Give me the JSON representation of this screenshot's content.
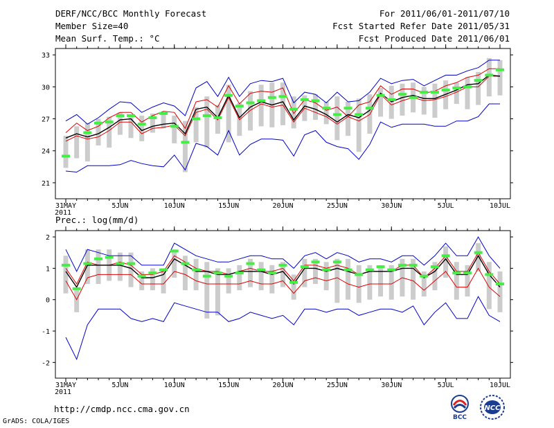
{
  "header": {
    "title": "DERF/NCC/BCC Monthly Forecast",
    "member": "Member Size=40",
    "variable": "Mean Surf. Temp.: °C",
    "period": "For 2011/06/01-2011/07/10",
    "refer": "Fcst Started Refer Date 2011/05/31",
    "produced": "Fcst Produced Date 2011/06/01"
  },
  "footer": {
    "url": "http://cmdp.ncc.cma.gov.cn",
    "credit": "GrADS: COLA/IGES",
    "logo_left": "BCC",
    "logo_right": "NCC"
  },
  "colors": {
    "max": "#0000cc",
    "min": "#0000cc",
    "upper": "#dd0000",
    "lower": "#dd0000",
    "mean": "#000000",
    "box": "#cccccc",
    "obs": "#44ee44"
  },
  "chart_data": [
    {
      "type": "line",
      "title": "Mean Surf. Temp.: °C",
      "xlabel": "",
      "ylabel": "",
      "x": [
        0,
        1,
        2,
        3,
        4,
        5,
        6,
        7,
        8,
        9,
        10,
        11,
        12,
        13,
        14,
        15,
        16,
        17,
        18,
        19,
        20,
        21,
        22,
        23,
        24,
        25,
        26,
        27,
        28,
        29,
        30,
        31,
        32,
        33,
        34,
        35,
        36,
        37,
        38,
        39,
        40
      ],
      "xlim": [
        0,
        40
      ],
      "ylim": [
        19.5,
        33.6
      ],
      "yticks": [
        21,
        24,
        27,
        30,
        33
      ],
      "xtick_pos": [
        0,
        5,
        10,
        15,
        20,
        25,
        30,
        35,
        40
      ],
      "xtick_labels": [
        "31MAY",
        "5JUN",
        "10JUN",
        "15JUN",
        "20JUN",
        "25JUN",
        "30JUN",
        "5JUL",
        "10JUL"
      ],
      "xsub": "2011",
      "series": [
        {
          "name": "max",
          "values": [
            26.8,
            27.4,
            26.5,
            27.1,
            27.9,
            28.6,
            28.5,
            27.6,
            28.1,
            28.5,
            28.2,
            27.3,
            29.9,
            30.5,
            29.1,
            30.9,
            29.1,
            30.3,
            30.6,
            30.5,
            30.8,
            28.5,
            29.5,
            29.3,
            28.5,
            29.5,
            28.6,
            28.7,
            29.5,
            30.8,
            30.3,
            30.6,
            30.7,
            30.1,
            30.6,
            31.1,
            31.1,
            31.5,
            31.8,
            32.5,
            32.5
          ]
        },
        {
          "name": "upper",
          "values": [
            25.7,
            26.6,
            25.9,
            26.3,
            27.1,
            27.6,
            27.6,
            26.7,
            27.3,
            27.7,
            27.6,
            26.1,
            28.6,
            28.8,
            28.1,
            30.1,
            28.4,
            29.4,
            29.6,
            29.5,
            29.9,
            27.5,
            28.8,
            28.5,
            27.8,
            28.1,
            27.2,
            28.3,
            28.6,
            30.1,
            29.3,
            29.8,
            29.8,
            29.4,
            29.6,
            30.1,
            30.4,
            30.9,
            31.1,
            31.7,
            31.7
          ]
        },
        {
          "name": "mean",
          "values": [
            25.2,
            25.6,
            25.3,
            25.6,
            26.2,
            26.9,
            27.0,
            25.9,
            26.3,
            26.5,
            26.6,
            25.6,
            27.9,
            28.1,
            27.1,
            29.2,
            27.1,
            28.1,
            28.6,
            28.3,
            28.6,
            26.9,
            28.2,
            27.9,
            27.4,
            26.7,
            27.4,
            27.1,
            27.8,
            29.4,
            28.6,
            29.0,
            29.2,
            28.9,
            28.9,
            29.3,
            29.7,
            30.2,
            30.3,
            31.1,
            31.0
          ]
        },
        {
          "name": "lower",
          "values": [
            24.9,
            25.4,
            25.1,
            25.3,
            25.9,
            26.7,
            26.7,
            25.6,
            26.1,
            26.2,
            26.4,
            25.4,
            27.6,
            27.9,
            26.9,
            29.0,
            26.9,
            27.8,
            28.4,
            28.1,
            28.3,
            26.7,
            28.0,
            27.6,
            27.2,
            26.5,
            27.2,
            26.8,
            27.4,
            29.3,
            28.3,
            28.7,
            29.0,
            28.7,
            28.8,
            29.1,
            29.5,
            30.0,
            30.0,
            31.0,
            31.0
          ]
        },
        {
          "name": "min",
          "values": [
            22.1,
            22.0,
            22.6,
            22.6,
            22.6,
            22.7,
            23.1,
            22.8,
            22.6,
            22.5,
            23.6,
            22.2,
            24.7,
            24.4,
            23.6,
            25.9,
            23.6,
            24.6,
            25.1,
            25.1,
            25.0,
            23.5,
            25.5,
            25.9,
            24.8,
            24.4,
            24.2,
            23.2,
            24.6,
            26.7,
            26.2,
            26.5,
            26.5,
            26.5,
            26.3,
            26.3,
            26.8,
            26.8,
            27.2,
            28.4,
            28.4
          ]
        },
        {
          "name": "box_hi",
          "values": [
            25.4,
            26.3,
            26.6,
            27.0,
            27.2,
            27.6,
            27.4,
            27.3,
            27.5,
            27.6,
            27.3,
            26.8,
            28.1,
            29.1,
            28.3,
            30.2,
            28.5,
            29.6,
            30.2,
            30.4,
            30.4,
            29.1,
            29.2,
            29.3,
            28.6,
            29.1,
            28.6,
            28.9,
            29.3,
            29.9,
            30.1,
            30.3,
            30.4,
            30.0,
            30.3,
            30.6,
            30.4,
            30.9,
            31.4,
            32.7,
            32.5
          ]
        },
        {
          "name": "box_lo",
          "values": [
            22.4,
            23.3,
            23.0,
            24.5,
            24.3,
            25.5,
            25.2,
            24.9,
            25.7,
            26.1,
            24.7,
            22.0,
            24.8,
            24.3,
            25.6,
            24.8,
            25.4,
            25.9,
            26.3,
            26.2,
            26.4,
            26.1,
            26.8,
            26.9,
            26.5,
            25.0,
            25.4,
            23.9,
            25.6,
            27.2,
            27.0,
            27.3,
            27.6,
            27.4,
            27.1,
            27.9,
            28.4,
            27.9,
            28.3,
            29.1,
            29.2
          ]
        },
        {
          "name": "obs",
          "values": [
            23.5,
            null,
            25.7,
            26.6,
            26.7,
            27.3,
            27.3,
            26.5,
            27.1,
            27.5,
            26.3,
            24.8,
            27.0,
            27.3,
            27.1,
            29.2,
            28.2,
            28.5,
            28.7,
            29.0,
            29.1,
            27.9,
            28.8,
            28.7,
            28.0,
            27.4,
            28.0,
            27.4,
            28.0,
            29.2,
            28.8,
            29.3,
            29.0,
            29.5,
            29.5,
            29.7,
            29.9,
            30.0,
            30.6,
            31.1,
            31.6
          ]
        }
      ]
    },
    {
      "type": "line",
      "title": "Prec.: log(mm/d)",
      "xlabel": "",
      "ylabel": "",
      "x": [
        0,
        1,
        2,
        3,
        4,
        5,
        6,
        7,
        8,
        9,
        10,
        11,
        12,
        13,
        14,
        15,
        16,
        17,
        18,
        19,
        20,
        21,
        22,
        23,
        24,
        25,
        26,
        27,
        28,
        29,
        30,
        31,
        32,
        33,
        34,
        35,
        36,
        37,
        38,
        39,
        40
      ],
      "xlim": [
        0,
        40
      ],
      "ylim": [
        -2.5,
        2.2
      ],
      "yticks": [
        -2,
        -1,
        0,
        1,
        2
      ],
      "xtick_pos": [
        0,
        5,
        10,
        15,
        20,
        25,
        30,
        35,
        40
      ],
      "xtick_labels": [
        "31MAY",
        "5JUN",
        "10JUN",
        "15JUN",
        "20JUN",
        "25JUN",
        "30JUN",
        "5JUL",
        "10JUL"
      ],
      "xsub": "2011",
      "series": [
        {
          "name": "max",
          "values": [
            1.6,
            0.9,
            1.6,
            1.5,
            1.4,
            1.4,
            1.4,
            1.1,
            1.1,
            1.1,
            1.8,
            1.6,
            1.4,
            1.3,
            1.2,
            1.2,
            1.3,
            1.4,
            1.4,
            1.3,
            1.3,
            1.0,
            1.4,
            1.5,
            1.3,
            1.5,
            1.4,
            1.2,
            1.3,
            1.3,
            1.2,
            1.4,
            1.4,
            1.1,
            1.4,
            1.8,
            1.4,
            1.4,
            2.0,
            1.4,
            1.0
          ]
        },
        {
          "name": "upper",
          "values": [
            1.0,
            0.5,
            1.2,
            1.1,
            1.1,
            1.2,
            1.1,
            0.8,
            0.8,
            0.9,
            1.4,
            1.2,
            1.0,
            0.9,
            0.9,
            0.8,
            0.9,
            1.0,
            0.9,
            0.9,
            1.0,
            0.6,
            1.1,
            1.1,
            1.0,
            1.1,
            1.0,
            0.8,
            0.9,
            0.9,
            0.9,
            1.1,
            1.1,
            0.7,
            1.0,
            1.4,
            0.9,
            0.9,
            1.5,
            0.9,
            0.5
          ]
        },
        {
          "name": "mean",
          "values": [
            0.9,
            0.4,
            1.1,
            1.1,
            1.1,
            1.1,
            1.0,
            0.7,
            0.7,
            0.8,
            1.3,
            1.1,
            0.9,
            0.9,
            0.8,
            0.8,
            0.9,
            0.9,
            0.9,
            0.8,
            0.9,
            0.5,
            1.0,
            1.0,
            0.9,
            1.0,
            0.9,
            0.8,
            0.9,
            0.9,
            0.9,
            1.0,
            1.0,
            0.7,
            0.9,
            1.3,
            0.8,
            0.8,
            1.4,
            0.8,
            0.4
          ]
        },
        {
          "name": "lower",
          "values": [
            0.6,
            0.0,
            0.7,
            0.8,
            0.8,
            0.8,
            0.8,
            0.5,
            0.5,
            0.5,
            0.9,
            0.8,
            0.6,
            0.5,
            0.5,
            0.5,
            0.5,
            0.6,
            0.5,
            0.5,
            0.6,
            0.2,
            0.6,
            0.7,
            0.6,
            0.7,
            0.5,
            0.4,
            0.5,
            0.5,
            0.5,
            0.7,
            0.6,
            0.3,
            0.6,
            0.9,
            0.4,
            0.4,
            1.0,
            0.4,
            0.1
          ]
        },
        {
          "name": "min",
          "values": [
            -1.2,
            -1.9,
            -0.8,
            -0.3,
            -0.3,
            -0.3,
            -0.6,
            -0.7,
            -0.6,
            -0.7,
            -0.1,
            -0.2,
            -0.3,
            -0.4,
            -0.4,
            -0.7,
            -0.6,
            -0.4,
            -0.5,
            -0.6,
            -0.5,
            -0.8,
            -0.3,
            -0.3,
            -0.4,
            -0.3,
            -0.3,
            -0.5,
            -0.4,
            -0.3,
            -0.3,
            -0.4,
            -0.2,
            -0.8,
            -0.4,
            -0.1,
            -0.6,
            -0.6,
            0.1,
            -0.5,
            -0.7
          ]
        },
        {
          "name": "box_hi",
          "values": [
            1.4,
            0.3,
            1.6,
            1.6,
            1.6,
            1.5,
            1.5,
            0.9,
            1.0,
            1.0,
            1.6,
            1.4,
            1.3,
            1.2,
            1.0,
            1.0,
            1.1,
            1.3,
            1.2,
            1.1,
            1.2,
            0.8,
            1.3,
            1.3,
            1.2,
            1.3,
            1.3,
            1.1,
            1.1,
            1.1,
            1.1,
            1.3,
            1.3,
            0.9,
            1.2,
            1.7,
            1.2,
            1.1,
            1.8,
            1.2,
            0.9
          ]
        },
        {
          "name": "box_lo",
          "values": [
            0.2,
            -0.4,
            0.5,
            0.5,
            0.6,
            0.6,
            0.4,
            0.3,
            0.3,
            0.2,
            0.7,
            0.3,
            0.3,
            -0.6,
            -0.5,
            0.2,
            0.3,
            0.4,
            0.3,
            0.2,
            0.4,
            0.0,
            0.4,
            0.5,
            0.3,
            -0.1,
            0.0,
            -0.1,
            0.0,
            0.1,
            0.0,
            0.1,
            0.0,
            0.1,
            0.3,
            0.7,
            0.0,
            0.1,
            0.9,
            -0.3,
            -0.4
          ]
        },
        {
          "name": "obs",
          "values": [
            1.1,
            0.35,
            1.15,
            1.3,
            1.35,
            1.15,
            1.15,
            0.75,
            0.85,
            0.95,
            1.55,
            1.15,
            0.95,
            0.75,
            0.85,
            0.75,
            0.85,
            1.15,
            0.95,
            0.85,
            1.1,
            0.55,
            1.05,
            1.2,
            0.95,
            1.2,
            0.95,
            0.8,
            0.95,
            1.05,
            0.95,
            1.1,
            1.1,
            0.75,
            1.05,
            1.4,
            0.85,
            0.85,
            1.5,
            0.8,
            0.5
          ]
        }
      ]
    }
  ]
}
